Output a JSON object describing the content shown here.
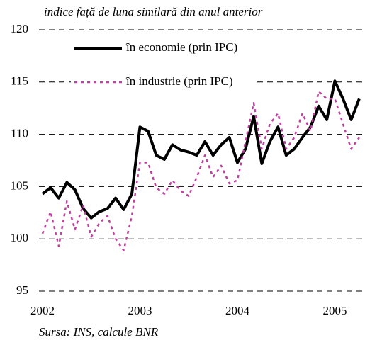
{
  "chart_data": {
    "type": "line",
    "title": "indice față de luna similară din anul anterior",
    "source": "Sursa: INS, calcule BNR",
    "x": [
      2002.0,
      2002.083,
      2002.167,
      2002.25,
      2002.333,
      2002.417,
      2002.5,
      2002.583,
      2002.667,
      2002.75,
      2002.833,
      2002.917,
      2003.0,
      2003.083,
      2003.167,
      2003.25,
      2003.333,
      2003.417,
      2003.5,
      2003.583,
      2003.667,
      2003.75,
      2003.833,
      2003.917,
      2004.0,
      2004.083,
      2004.167,
      2004.25,
      2004.333,
      2004.417,
      2004.5,
      2004.583,
      2004.667,
      2004.75,
      2004.833,
      2004.917,
      2005.0,
      2005.083,
      2005.167,
      2005.25
    ],
    "series": [
      {
        "name": "în economie (prin IPC)",
        "color": "#000000",
        "line_style": "solid",
        "values": [
          104.3,
          104.9,
          103.9,
          105.4,
          104.7,
          102.9,
          102.0,
          102.6,
          102.9,
          103.9,
          102.8,
          104.3,
          110.7,
          110.3,
          108.0,
          107.6,
          109.0,
          108.5,
          108.3,
          108.0,
          109.3,
          108.0,
          109.0,
          109.7,
          107.3,
          108.6,
          111.7,
          107.2,
          109.3,
          110.7,
          108.0,
          108.6,
          109.7,
          110.7,
          112.7,
          111.4,
          115.1,
          113.4,
          111.4,
          113.4
        ]
      },
      {
        "name": "în industrie (prin IPC)",
        "color": "#c040a0",
        "line_style": "dotted",
        "values": [
          100.5,
          102.6,
          99.3,
          103.6,
          100.9,
          103.2,
          100.2,
          101.5,
          102.2,
          100.0,
          98.9,
          102.2,
          107.3,
          107.3,
          104.9,
          104.3,
          105.6,
          104.6,
          104.1,
          105.9,
          108.0,
          105.9,
          107.0,
          105.3,
          105.6,
          109.3,
          113.0,
          108.6,
          111.0,
          112.0,
          108.6,
          109.7,
          112.0,
          110.3,
          114.1,
          113.4,
          113.4,
          111.0,
          108.6,
          109.7
        ]
      }
    ],
    "xlim": [
      2001.964,
      2005.309
    ],
    "xticks": [
      2002,
      2003,
      2004,
      2005
    ],
    "ylim": [
      95,
      120
    ],
    "yticks": [
      95,
      100,
      105,
      110,
      115,
      120
    ],
    "grid": true
  }
}
